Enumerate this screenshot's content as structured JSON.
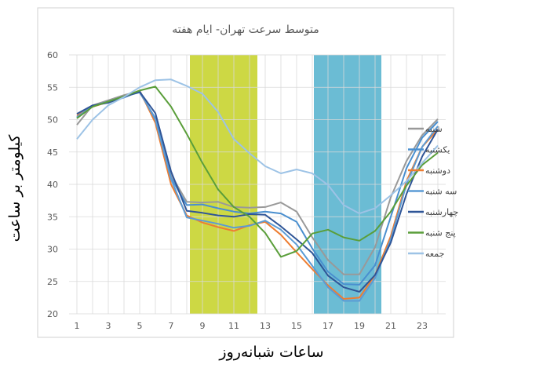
{
  "chart_data": {
    "type": "line",
    "title": "متوسط سرعت تهران- ایام هفته",
    "xlabel": "ساعات شبانه‌روز",
    "ylabel": "کیلومتر بر ساعت",
    "x": [
      1,
      2,
      3,
      4,
      5,
      6,
      7,
      8,
      9,
      10,
      11,
      12,
      13,
      14,
      15,
      16,
      17,
      18,
      19,
      20,
      21,
      22,
      23,
      24
    ],
    "xticks": [
      1,
      3,
      5,
      7,
      9,
      11,
      13,
      15,
      17,
      19,
      21,
      23
    ],
    "xlim": [
      0.5,
      24.5
    ],
    "ylim": [
      20,
      60
    ],
    "yticks": [
      20,
      25,
      30,
      35,
      40,
      45,
      50,
      55,
      60
    ],
    "grid": true,
    "legend_position": "right",
    "highlight_bands": [
      {
        "from": 8.2,
        "to": 12.5,
        "color": "#c8d430"
      },
      {
        "from": 16.1,
        "to": 20.4,
        "color": "#5bb5cf"
      }
    ],
    "series": [
      {
        "name": "شنبه",
        "color": "#999999",
        "values": [
          49.2,
          52.2,
          53.0,
          53.8,
          54.4,
          50.0,
          41.5,
          37.3,
          37.2,
          37.3,
          36.5,
          36.4,
          36.5,
          37.2,
          35.8,
          31.8,
          28.3,
          26.1,
          26.1,
          30.3,
          38.0,
          43.6,
          47.6,
          50.1
        ]
      },
      {
        "name": "یکشنبه",
        "color": "#4a8fcf",
        "values": [
          50.3,
          52.1,
          52.8,
          53.6,
          54.2,
          50.2,
          41.0,
          36.8,
          36.9,
          36.3,
          35.8,
          35.5,
          35.8,
          35.5,
          34.2,
          30.1,
          26.5,
          24.6,
          24.5,
          27.5,
          35.0,
          42.5,
          47.2,
          49.7
        ]
      },
      {
        "name": "دوشنبه",
        "color": "#ed7d31",
        "values": [
          50.6,
          52.0,
          52.7,
          53.6,
          54.5,
          49.5,
          40.0,
          35.2,
          34.1,
          33.4,
          32.8,
          33.7,
          34.2,
          32.2,
          29.5,
          26.9,
          24.4,
          22.3,
          22.5,
          26.0,
          32.0,
          40.5,
          45.8,
          48.5
        ]
      },
      {
        "name": "سه شنبه",
        "color": "#5b9bd5",
        "values": [
          50.4,
          52.1,
          52.7,
          53.4,
          54.4,
          50.0,
          40.8,
          34.9,
          34.4,
          33.9,
          33.3,
          33.6,
          34.4,
          33.0,
          30.7,
          27.4,
          24.1,
          22.0,
          22.0,
          25.5,
          31.5,
          40.0,
          45.8,
          49.0
        ]
      },
      {
        "name": "چهارشنبه",
        "color": "#2f5597",
        "values": [
          50.9,
          52.2,
          52.6,
          53.5,
          54.3,
          51.0,
          42.0,
          35.9,
          35.6,
          35.2,
          35.0,
          35.4,
          35.3,
          33.5,
          31.5,
          29.4,
          25.9,
          24.1,
          23.4,
          26.0,
          31.0,
          38.5,
          44.3,
          48.5
        ]
      },
      {
        "name": "پنج شنبه",
        "color": "#5a9e3a",
        "values": [
          50.2,
          52.0,
          52.8,
          53.6,
          54.5,
          55.1,
          52.0,
          47.8,
          43.3,
          39.2,
          36.5,
          35.0,
          32.5,
          28.8,
          29.7,
          32.4,
          33.0,
          31.8,
          31.3,
          32.8,
          35.8,
          39.8,
          43.0,
          44.9
        ]
      },
      {
        "name": "جمعه",
        "color": "#9dc3e6",
        "values": [
          47.0,
          50.0,
          52.2,
          53.5,
          55.0,
          56.1,
          56.2,
          55.2,
          54.0,
          51.2,
          47.0,
          44.8,
          42.8,
          41.7,
          42.3,
          41.7,
          39.9,
          36.8,
          35.5,
          36.3,
          38.3,
          40.5,
          43.3,
          46.0
        ]
      }
    ]
  }
}
